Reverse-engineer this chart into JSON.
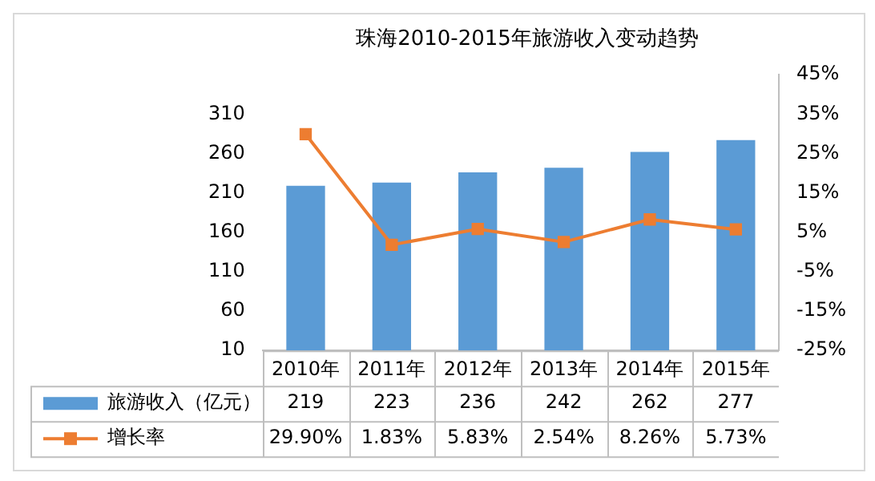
{
  "chart_data": {
    "type": "bar",
    "title": "珠海2010-2015年旅游收入变动趋势",
    "categories": [
      "2010年",
      "2011年",
      "2012年",
      "2013年",
      "2014年",
      "2015年"
    ],
    "series": [
      {
        "name": "旅游收入（亿元）",
        "color": "#5b9bd5",
        "values": [
          219,
          223,
          236,
          242,
          262,
          277
        ],
        "value_labels": [
          "219",
          "223",
          "236",
          "242",
          "262",
          "277"
        ]
      },
      {
        "name": "增长率",
        "type": "line",
        "axis": "y2",
        "color": "#ed7d31",
        "marker": "square",
        "values": [
          29.9,
          1.83,
          5.83,
          2.54,
          8.26,
          5.73
        ],
        "value_labels": [
          "29.90%",
          "1.83%",
          "5.83%",
          "2.54%",
          "8.26%",
          "5.73%"
        ]
      }
    ],
    "ylim": [
      10,
      360
    ],
    "yticks": [
      10,
      60,
      110,
      160,
      210,
      260,
      310
    ],
    "y2lim": [
      -25,
      45
    ],
    "y2ticks": [
      {
        "value": -25,
        "label": "-25%"
      },
      {
        "value": -15,
        "label": "-15%"
      },
      {
        "value": -5,
        "label": "-5%"
      },
      {
        "value": 5,
        "label": "5%"
      },
      {
        "value": 15,
        "label": "15%"
      },
      {
        "value": 25,
        "label": "25%"
      },
      {
        "value": 35,
        "label": "35%"
      },
      {
        "value": 45,
        "label": "45%"
      }
    ],
    "grid": false,
    "legend": "bottom"
  }
}
